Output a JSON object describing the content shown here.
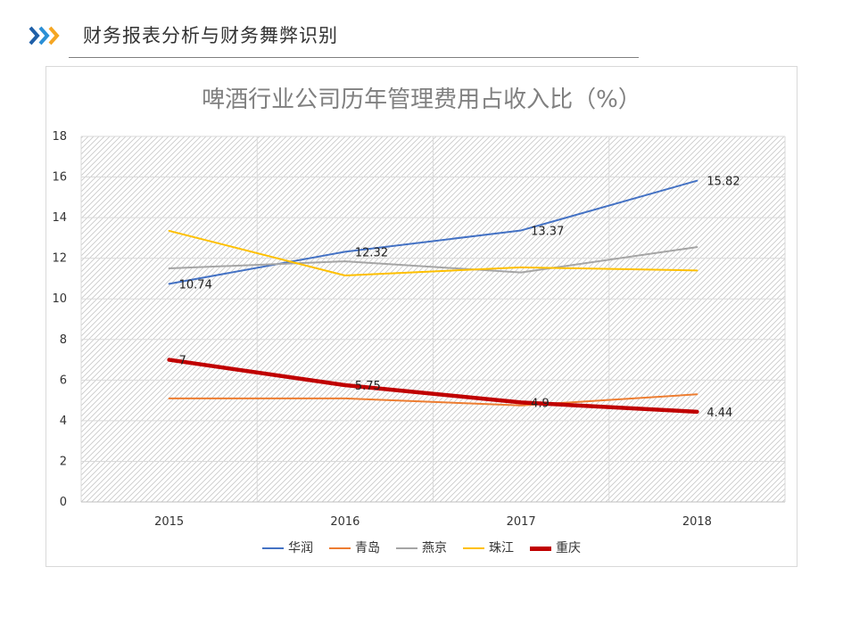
{
  "header": {
    "title": "财务报表分析与财务舞弊识别",
    "chevron_colors": [
      "#1f5fa8",
      "#2b8fd6",
      "#f5a623"
    ]
  },
  "chart_data": {
    "type": "line",
    "title": "啤酒行业公司历年管理费用占收入比（%）",
    "categories": [
      "2015",
      "2016",
      "2017",
      "2018"
    ],
    "ylim": [
      0,
      18
    ],
    "yticks": [
      0,
      2,
      4,
      6,
      8,
      10,
      12,
      14,
      16,
      18
    ],
    "grid": true,
    "legend_position": "bottom",
    "series": [
      {
        "name": "华润",
        "values": [
          10.74,
          12.32,
          13.37,
          15.82
        ],
        "color": "#4472c4",
        "labels": [
          "10.74",
          "12.32",
          "13.37",
          "15.82"
        ]
      },
      {
        "name": "青岛",
        "values": [
          5.1,
          5.1,
          4.75,
          5.3
        ],
        "color": "#ed7d31"
      },
      {
        "name": "燕京",
        "values": [
          11.5,
          11.85,
          11.3,
          12.55
        ],
        "color": "#a5a5a5"
      },
      {
        "name": "珠江",
        "values": [
          13.35,
          11.15,
          11.55,
          11.4
        ],
        "color": "#ffc000"
      },
      {
        "name": "重庆",
        "values": [
          7,
          5.75,
          4.9,
          4.44
        ],
        "color": "#c00000",
        "emphasis": true,
        "labels": [
          "7",
          "5.75",
          "4.9",
          "4.44"
        ]
      }
    ]
  }
}
